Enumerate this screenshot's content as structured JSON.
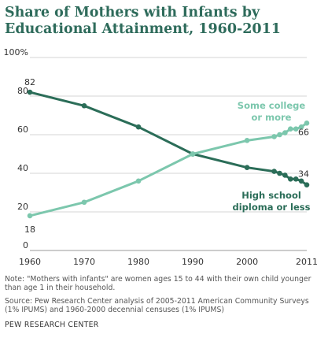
{
  "title": "Share of Mothers with Infants by Educational Attainment, 1960-2011",
  "note": "Note: \"Mothers with infants\" are women ages 15 to 44 with their own child younger than age 1 in their household.",
  "source": "Source: Pew Research Center analysis of 2005-2011 American Community Surveys (1% IPUMS) and 1960-2000 decennial censuses (1% IPUMS)",
  "credit": "PEW RESEARCH CENTER",
  "chart_data": {
    "type": "line",
    "title": "Share of Mothers with Infants by Educational Attainment, 1960-2011",
    "x_ticks": [
      "1960",
      "1970",
      "1980",
      "1990",
      "2000",
      "2011"
    ],
    "y_ticks": [
      "0",
      "20",
      "40",
      "60",
      "80",
      "100%"
    ],
    "ylim": [
      0,
      100
    ],
    "xlim": [
      1960,
      2011
    ],
    "grid": true,
    "series": [
      {
        "name": "High school diploma or less",
        "label_lines": [
          "High school",
          "diploma or less"
        ],
        "color": "#2b6d58",
        "x": [
          1960,
          1970,
          1980,
          1990,
          2000,
          2005,
          2006,
          2007,
          2008,
          2009,
          2010,
          2011
        ],
        "y": [
          82,
          75,
          64,
          50,
          43,
          41,
          40,
          39,
          37,
          37,
          36,
          34
        ],
        "start_label": "82",
        "end_label": "34"
      },
      {
        "name": "Some college or more",
        "label_lines": [
          "Some college",
          "or more"
        ],
        "color": "#7cc7ad",
        "x": [
          1960,
          1970,
          1980,
          1990,
          2000,
          2005,
          2006,
          2007,
          2008,
          2009,
          2010,
          2011
        ],
        "y": [
          18,
          25,
          36,
          50,
          57,
          59,
          60,
          61,
          63,
          63,
          64,
          66
        ],
        "start_label": "18",
        "end_label": "66"
      }
    ]
  }
}
